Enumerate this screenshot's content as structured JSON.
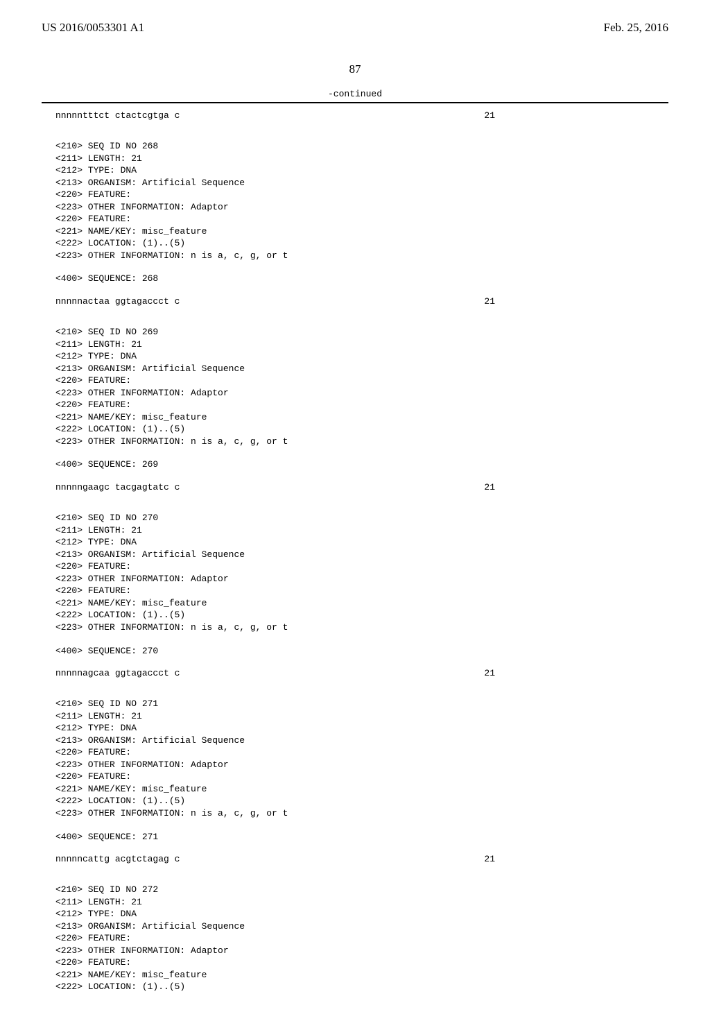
{
  "header": {
    "left": "US 2016/0053301 A1",
    "right": "Feb. 25, 2016"
  },
  "page_number": "87",
  "continued_label": "-continued",
  "blocks": [
    {
      "type": "seqrow",
      "sequence": "nnnnntttct ctactcgtga c",
      "length": "21"
    },
    {
      "type": "entry",
      "lines": [
        "<210> SEQ ID NO 268",
        "<211> LENGTH: 21",
        "<212> TYPE: DNA",
        "<213> ORGANISM: Artificial Sequence",
        "<220> FEATURE:",
        "<223> OTHER INFORMATION: Adaptor",
        "<220> FEATURE:",
        "<221> NAME/KEY: misc_feature",
        "<222> LOCATION: (1)..(5)",
        "<223> OTHER INFORMATION: n is a, c, g, or t"
      ],
      "seq_label": "<400> SEQUENCE: 268",
      "sequence": "nnnnnactaa ggtagaccct c",
      "length": "21"
    },
    {
      "type": "entry",
      "lines": [
        "<210> SEQ ID NO 269",
        "<211> LENGTH: 21",
        "<212> TYPE: DNA",
        "<213> ORGANISM: Artificial Sequence",
        "<220> FEATURE:",
        "<223> OTHER INFORMATION: Adaptor",
        "<220> FEATURE:",
        "<221> NAME/KEY: misc_feature",
        "<222> LOCATION: (1)..(5)",
        "<223> OTHER INFORMATION: n is a, c, g, or t"
      ],
      "seq_label": "<400> SEQUENCE: 269",
      "sequence": "nnnnngaagc tacgagtatc c",
      "length": "21"
    },
    {
      "type": "entry",
      "lines": [
        "<210> SEQ ID NO 270",
        "<211> LENGTH: 21",
        "<212> TYPE: DNA",
        "<213> ORGANISM: Artificial Sequence",
        "<220> FEATURE:",
        "<223> OTHER INFORMATION: Adaptor",
        "<220> FEATURE:",
        "<221> NAME/KEY: misc_feature",
        "<222> LOCATION: (1)..(5)",
        "<223> OTHER INFORMATION: n is a, c, g, or t"
      ],
      "seq_label": "<400> SEQUENCE: 270",
      "sequence": "nnnnnagcaa ggtagaccct c",
      "length": "21"
    },
    {
      "type": "entry",
      "lines": [
        "<210> SEQ ID NO 271",
        "<211> LENGTH: 21",
        "<212> TYPE: DNA",
        "<213> ORGANISM: Artificial Sequence",
        "<220> FEATURE:",
        "<223> OTHER INFORMATION: Adaptor",
        "<220> FEATURE:",
        "<221> NAME/KEY: misc_feature",
        "<222> LOCATION: (1)..(5)",
        "<223> OTHER INFORMATION: n is a, c, g, or t"
      ],
      "seq_label": "<400> SEQUENCE: 271",
      "sequence": "nnnnncattg acgtctagag c",
      "length": "21"
    },
    {
      "type": "entry_partial",
      "lines": [
        "<210> SEQ ID NO 272",
        "<211> LENGTH: 21",
        "<212> TYPE: DNA",
        "<213> ORGANISM: Artificial Sequence",
        "<220> FEATURE:",
        "<223> OTHER INFORMATION: Adaptor",
        "<220> FEATURE:",
        "<221> NAME/KEY: misc_feature",
        "<222> LOCATION: (1)..(5)"
      ]
    }
  ]
}
